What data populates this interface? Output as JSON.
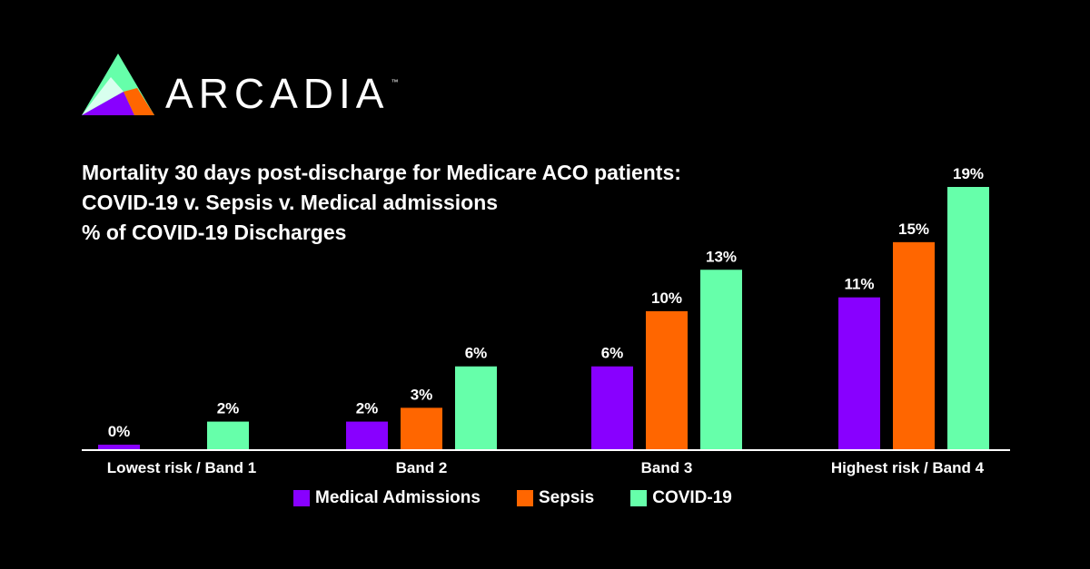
{
  "brand": {
    "name": "ARCADIA",
    "trademark": "™"
  },
  "title_lines": [
    "Mortality 30 days post-discharge for Medicare ACO patients:",
    "COVID-19 v. Sepsis v. Medical admissions",
    "% of COVID-19 Discharges"
  ],
  "chart_data": {
    "type": "bar",
    "title": "Mortality 30 days post-discharge for Medicare ACO patients: COVID-19 v. Sepsis v. Medical admissions",
    "subtitle": "% of COVID-19 Discharges",
    "categories": [
      "Lowest risk / Band 1",
      "Band 2",
      "Band 3",
      "Highest risk / Band 4"
    ],
    "series": [
      {
        "name": "Medical Admissions",
        "color": "#8800ff",
        "values": [
          0,
          2,
          6,
          11
        ],
        "labels": [
          "0%",
          "2%",
          "6%",
          "11%"
        ]
      },
      {
        "name": "Sepsis",
        "color": "#ff6600",
        "values": [
          null,
          3,
          10,
          15
        ],
        "labels": [
          null,
          "3%",
          "10%",
          "15%"
        ]
      },
      {
        "name": "COVID-19",
        "color": "#66ffaa",
        "values": [
          2,
          6,
          13,
          19
        ],
        "labels": [
          "2%",
          "6%",
          "13%",
          "19%"
        ]
      }
    ],
    "ylim": [
      0,
      19
    ],
    "grid": false,
    "legend_position": "bottom",
    "xlabel": "",
    "ylabel": ""
  }
}
